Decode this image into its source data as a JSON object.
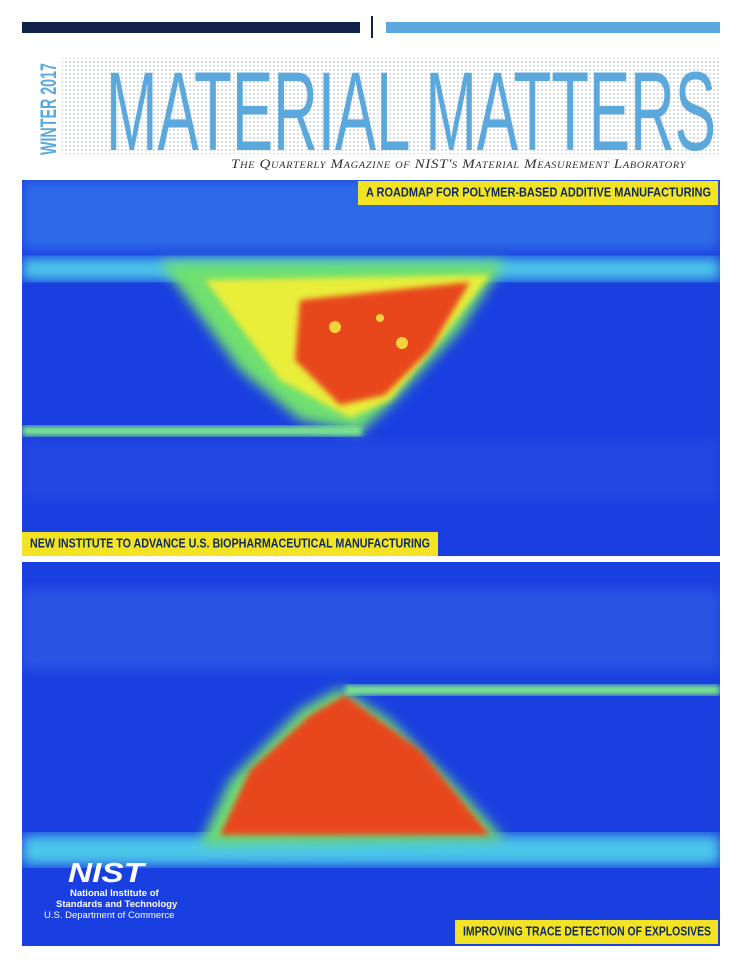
{
  "header": {
    "season": "WINTER 2017",
    "title": "MATERIAL MATTERS",
    "subtitle": "The Quarterly Magazine of NIST's Material Measurement Laboratory"
  },
  "headlines": [
    "A ROADMAP FOR POLYMER-BASED ADDITIVE MANUFACTURING",
    "NEW INSTITUTE TO ADVANCE U.S. BIOPHARMACEUTICAL MANUFACTURING",
    "IMPROVING TRACE DETECTION OF EXPLOSIVES"
  ],
  "logo": {
    "mark": "NIST",
    "lines": [
      "National Institute of",
      "Standards and Technology",
      "U.S. Department of Commerce"
    ]
  }
}
